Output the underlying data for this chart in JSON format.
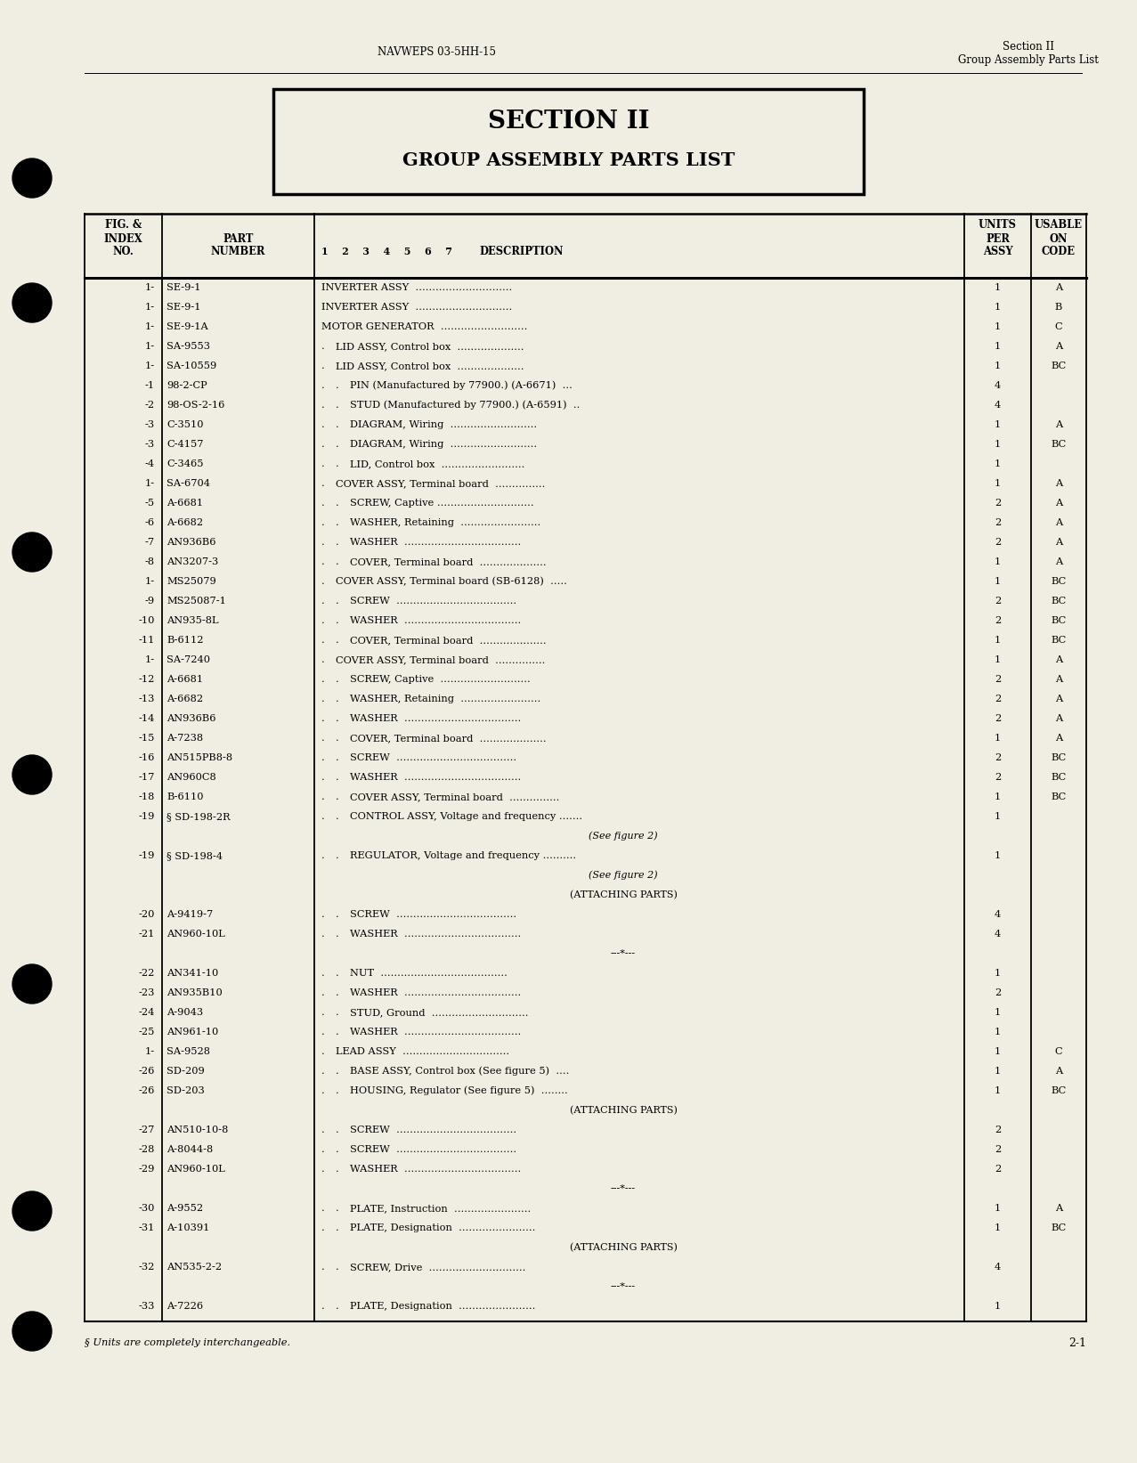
{
  "page_bg": "#f0ede3",
  "header_left": "NAVWEPS 03-5HH-15",
  "header_right_line1": "Section II",
  "header_right_line2": "Group Assembly Parts List",
  "section_title_line1": "SECTION II",
  "section_title_line2": "GROUP ASSEMBLY PARTS LIST",
  "footer_note": "§ Units are completely interchangeable.",
  "footer_num": "2-1",
  "rows": [
    [
      "1-",
      "SE-9-1",
      0,
      "INVERTER ASSY  .............................",
      "1",
      "A"
    ],
    [
      "1-",
      "SE-9-1",
      0,
      "INVERTER ASSY  .............................",
      "1",
      "B"
    ],
    [
      "1-",
      "SE-9-1A",
      0,
      "MOTOR GENERATOR  ..........................",
      "1",
      "C"
    ],
    [
      "1-",
      "SA-9553",
      1,
      "LID ASSY, Control box  ....................",
      "1",
      "A"
    ],
    [
      "1-",
      "SA-10559",
      1,
      "LID ASSY, Control box  ....................",
      "1",
      "BC"
    ],
    [
      "-1",
      "98-2-CP",
      2,
      "PIN (Manufactured by 77900.) (A-6671)  ...",
      "4",
      ""
    ],
    [
      "-2",
      "98-OS-2-16",
      2,
      "STUD (Manufactured by 77900.) (A-6591)  ..",
      "4",
      ""
    ],
    [
      "-3",
      "C-3510",
      2,
      "DIAGRAM, Wiring  ..........................",
      "1",
      "A"
    ],
    [
      "-3",
      "C-4157",
      2,
      "DIAGRAM, Wiring  ..........................",
      "1",
      "BC"
    ],
    [
      "-4",
      "C-3465",
      2,
      "LID, Control box  .........................",
      "1",
      ""
    ],
    [
      "1-",
      "SA-6704",
      1,
      "COVER ASSY, Terminal board  ...............",
      "1",
      "A"
    ],
    [
      "-5",
      "A-6681",
      2,
      "SCREW, Captive .............................",
      "2",
      "A"
    ],
    [
      "-6",
      "A-6682",
      2,
      "WASHER, Retaining  ........................",
      "2",
      "A"
    ],
    [
      "-7",
      "AN936B6",
      2,
      "WASHER  ...................................",
      "2",
      "A"
    ],
    [
      "-8",
      "AN3207-3",
      2,
      "COVER, Terminal board  ....................",
      "1",
      "A"
    ],
    [
      "1-",
      "MS25079",
      1,
      "COVER ASSY, Terminal board (SB-6128)  .....",
      "1",
      "BC"
    ],
    [
      "-9",
      "MS25087-1",
      2,
      "SCREW  ....................................",
      "2",
      "BC"
    ],
    [
      "-10",
      "AN935-8L",
      2,
      "WASHER  ...................................",
      "2",
      "BC"
    ],
    [
      "-11",
      "B-6112",
      2,
      "COVER, Terminal board  ....................",
      "1",
      "BC"
    ],
    [
      "1-",
      "SA-7240",
      1,
      "COVER ASSY, Terminal board  ...............",
      "1",
      "A"
    ],
    [
      "-12",
      "A-6681",
      2,
      "SCREW, Captive  ...........................",
      "2",
      "A"
    ],
    [
      "-13",
      "A-6682",
      2,
      "WASHER, Retaining  ........................",
      "2",
      "A"
    ],
    [
      "-14",
      "AN936B6",
      2,
      "WASHER  ...................................",
      "2",
      "A"
    ],
    [
      "-15",
      "A-7238",
      2,
      "COVER, Terminal board  ....................",
      "1",
      "A"
    ],
    [
      "-16",
      "AN515PB8-8",
      2,
      "SCREW  ....................................",
      "2",
      "BC"
    ],
    [
      "-17",
      "AN960C8",
      2,
      "WASHER  ...................................",
      "2",
      "BC"
    ],
    [
      "-18",
      "B-6110",
      2,
      "COVER ASSY, Terminal board  ...............",
      "1",
      "BC"
    ],
    [
      "-19",
      "§ SD-198-2R",
      2,
      "CONTROL ASSY, Voltage and frequency .......",
      "1",
      ""
    ],
    [
      "",
      "",
      0,
      "(See figure 2)",
      "",
      ""
    ],
    [
      "-19",
      "§ SD-198-4",
      2,
      "REGULATOR, Voltage and frequency ..........",
      "1",
      ""
    ],
    [
      "",
      "",
      0,
      "(See figure 2)",
      "",
      ""
    ],
    [
      "",
      "",
      0,
      "(ATTACHING PARTS)",
      "",
      ""
    ],
    [
      "-20",
      "A-9419-7",
      2,
      "SCREW  ....................................",
      "4",
      ""
    ],
    [
      "-21",
      "AN960-10L",
      2,
      "WASHER  ...................................",
      "4",
      ""
    ],
    [
      "",
      "",
      0,
      "---*---",
      "",
      ""
    ],
    [
      "-22",
      "AN341-10",
      2,
      "NUT  ......................................",
      "1",
      ""
    ],
    [
      "-23",
      "AN935B10",
      2,
      "WASHER  ...................................",
      "2",
      ""
    ],
    [
      "-24",
      "A-9043",
      2,
      "STUD, Ground  .............................",
      "1",
      ""
    ],
    [
      "-25",
      "AN961-10",
      2,
      "WASHER  ...................................",
      "1",
      ""
    ],
    [
      "1-",
      "SA-9528",
      1,
      "LEAD ASSY  ................................",
      "1",
      "C"
    ],
    [
      "-26",
      "SD-209",
      2,
      "BASE ASSY, Control box (See figure 5)  ....",
      "1",
      "A"
    ],
    [
      "-26",
      "SD-203",
      2,
      "HOUSING, Regulator (See figure 5)  ........",
      "1",
      "BC"
    ],
    [
      "",
      "",
      0,
      "(ATTACHING PARTS)",
      "",
      ""
    ],
    [
      "-27",
      "AN510-10-8",
      2,
      "SCREW  ....................................",
      "2",
      ""
    ],
    [
      "-28",
      "A-8044-8",
      2,
      "SCREW  ....................................",
      "2",
      ""
    ],
    [
      "-29",
      "AN960-10L",
      2,
      "WASHER  ...................................",
      "2",
      ""
    ],
    [
      "",
      "",
      0,
      "---*---",
      "",
      ""
    ],
    [
      "-30",
      "A-9552",
      2,
      "PLATE, Instruction  .......................",
      "1",
      "A"
    ],
    [
      "-31",
      "A-10391",
      2,
      "PLATE, Designation  .......................",
      "1",
      "BC"
    ],
    [
      "",
      "",
      0,
      "(ATTACHING PARTS)",
      "",
      ""
    ],
    [
      "-32",
      "AN535-2-2",
      2,
      "SCREW, Drive  .............................",
      "4",
      ""
    ],
    [
      "",
      "",
      0,
      "---*---",
      "",
      ""
    ],
    [
      "-33",
      "A-7226",
      2,
      "PLATE, Designation  .......................",
      "1",
      ""
    ]
  ]
}
